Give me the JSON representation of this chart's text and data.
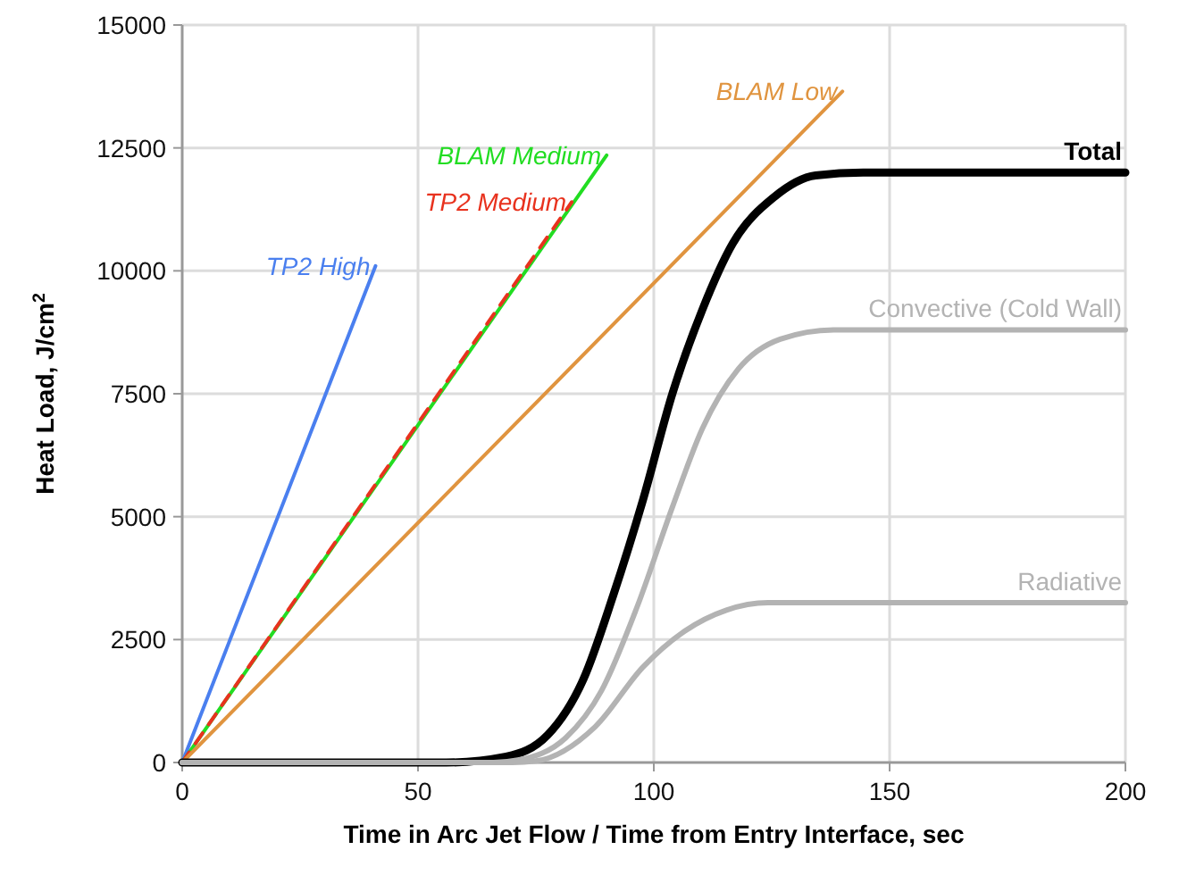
{
  "chart_data": {
    "type": "line",
    "xlabel": "Time in Arc Jet Flow / Time from Entry Interface, sec",
    "ylabel": "Heat Load, J/cm$^{2}$",
    "xlim": [
      0,
      200
    ],
    "ylim": [
      0,
      15000
    ],
    "xticks": [
      0,
      50,
      100,
      150,
      200
    ],
    "yticks": [
      0,
      2500,
      5000,
      7500,
      10000,
      12500,
      15000
    ],
    "grid": true,
    "series": [
      {
        "name": "TP2 High",
        "color": "#4a7fef",
        "line_style": "solid",
        "x": [
          0,
          41
        ],
        "values": [
          0,
          10100
        ]
      },
      {
        "name": "BLAM Medium",
        "color": "#22dd22",
        "line_style": "solid",
        "x": [
          0,
          90
        ],
        "values": [
          0,
          12350
        ]
      },
      {
        "name": "TP2 Medium",
        "color": "#e8321e",
        "line_style": "dashed",
        "x": [
          0,
          82.6
        ],
        "values": [
          0,
          11400
        ]
      },
      {
        "name": "BLAM Low",
        "color": "#e0943f",
        "line_style": "solid",
        "x": [
          0,
          140
        ],
        "values": [
          0,
          13650
        ]
      },
      {
        "name": "Total",
        "color": "#000000",
        "line_style": "solid",
        "x": [
          0,
          56,
          68.7,
          77.5,
          85.1,
          91.4,
          97.7,
          104,
          110.3,
          116.7,
          125.5,
          134.3,
          144.4,
          200
        ],
        "values": [
          0,
          0,
          120,
          560,
          1700,
          3400,
          5340,
          7520,
          9210,
          10550,
          11500,
          11940,
          12000,
          12000
        ]
      },
      {
        "name": "Convective (Cold Wall)",
        "color": "#b3b3b3",
        "line_style": "solid",
        "x": [
          0,
          66,
          71.2,
          81.3,
          88.9,
          96.4,
          104,
          110.3,
          117.9,
          126.8,
          138.1,
          200
        ],
        "values": [
          0,
          0,
          50,
          500,
          1460,
          3150,
          5210,
          6790,
          8000,
          8610,
          8800,
          8800
        ]
      },
      {
        "name": "Radiative",
        "color": "#b3b3b3",
        "line_style": "solid",
        "x": [
          0,
          70,
          75,
          87.6,
          97.7,
          106.5,
          115.4,
          124.2,
          200
        ],
        "values": [
          0,
          0,
          30,
          730,
          1940,
          2670,
          3100,
          3250,
          3250
        ]
      }
    ]
  }
}
